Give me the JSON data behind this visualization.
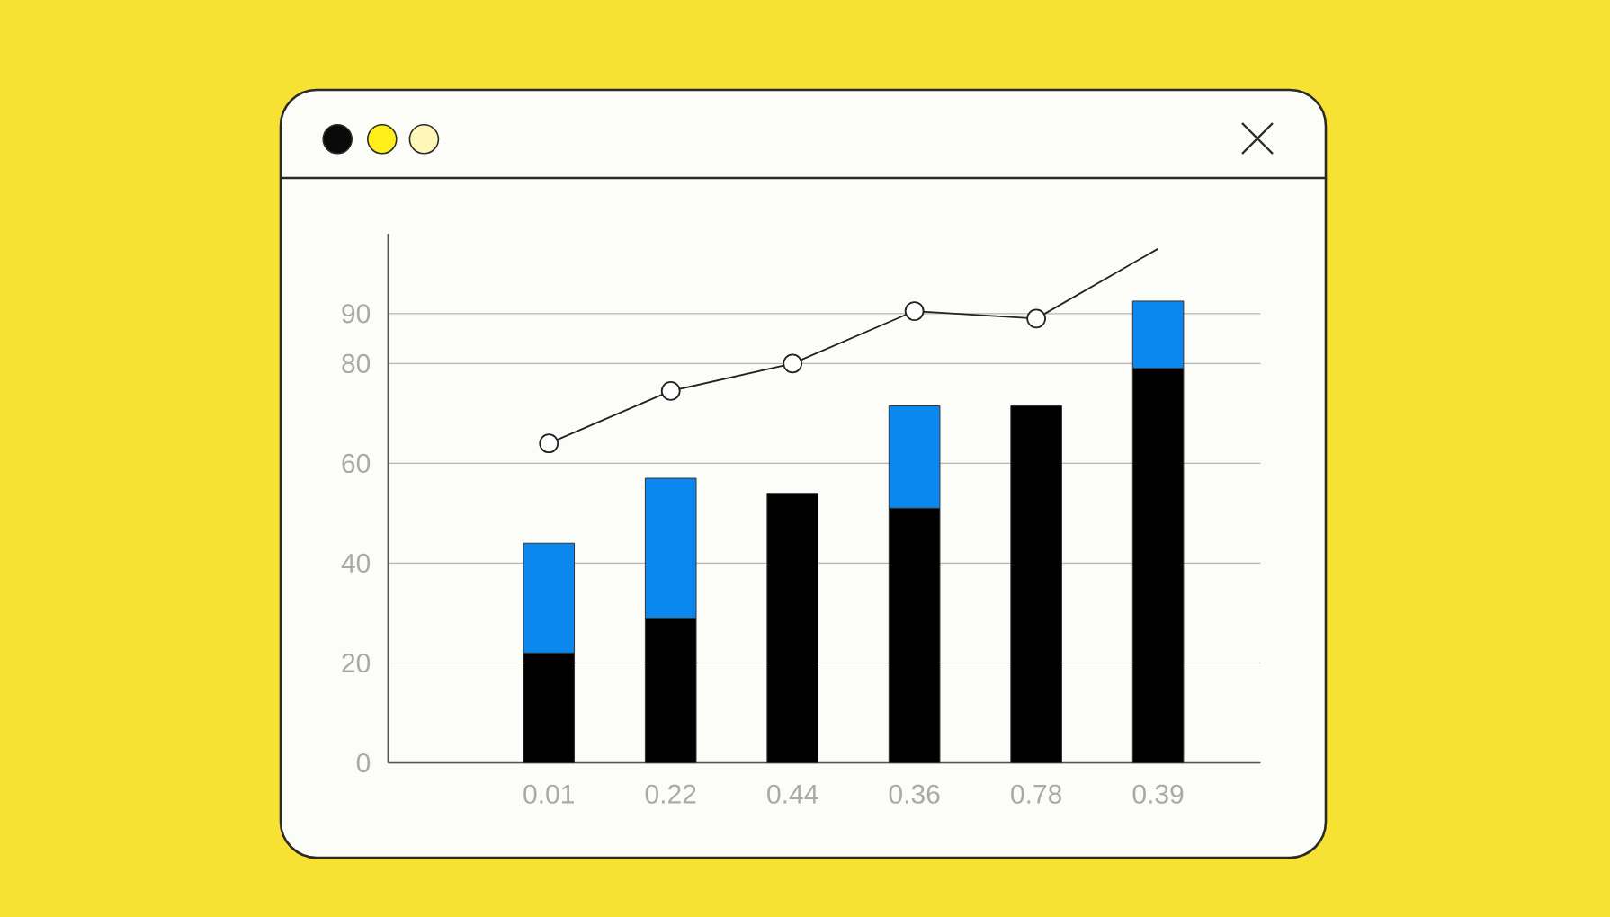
{
  "chart_data": {
    "type": "bar",
    "stacked": true,
    "categories": [
      "0.01",
      "0.22",
      "0.44",
      "0.36",
      "0.78",
      "0.39"
    ],
    "series": [
      {
        "color": "#000000",
        "values": [
          22,
          29,
          54,
          51,
          71.5,
          79
        ]
      },
      {
        "color": "#0a88f0",
        "values": [
          22,
          28,
          null,
          20.5,
          null,
          13.5
        ]
      },
      {
        "type": "line",
        "color": "#222222",
        "values": [
          64,
          74.5,
          80,
          90.5,
          89,
          103
        ]
      },
      {
        "type": "scatter",
        "color": "#222222",
        "marker": "circle",
        "values": [
          64,
          74.5,
          80,
          90.5,
          89,
          null
        ]
      }
    ],
    "ylim": [
      0,
      106
    ],
    "yticks": [
      0,
      20,
      40,
      60,
      80,
      90
    ],
    "grid": "y"
  }
}
